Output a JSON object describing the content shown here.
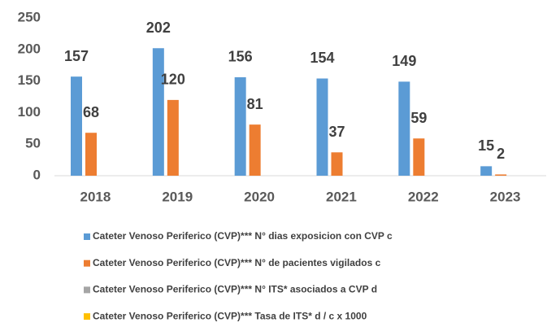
{
  "chart_data": {
    "type": "bar",
    "categories": [
      "2018",
      "2019",
      "2020",
      "2021",
      "2022",
      "2023"
    ],
    "series": [
      {
        "name": "Cateter Venoso Periferico (CVP)*** N° dias exposicion con CVP c",
        "color": "#5b9bd5",
        "values": [
          157,
          202,
          156,
          154,
          149,
          15
        ],
        "show_labels": true
      },
      {
        "name": "Cateter Venoso Periferico (CVP)*** N° de pacientes vigilados c",
        "color": "#ed7d31",
        "values": [
          68,
          120,
          81,
          37,
          59,
          2
        ],
        "show_labels": true
      },
      {
        "name": "Cateter Venoso Periferico (CVP)*** N° ITS* asociados a CVP d",
        "color": "#a5a5a5",
        "values": [
          0,
          0,
          0,
          0,
          0,
          0
        ],
        "show_labels": false
      },
      {
        "name": "Cateter Venoso Periferico (CVP)*** Tasa de ITS*  d / c x 1000",
        "color": "#ffc000",
        "values": [
          0,
          0,
          0,
          0,
          0,
          0
        ],
        "show_labels": false
      }
    ],
    "ylim": [
      0,
      250
    ],
    "yticks": [
      0,
      50,
      100,
      150,
      200,
      250
    ],
    "grid": false,
    "legend": "bottom"
  }
}
